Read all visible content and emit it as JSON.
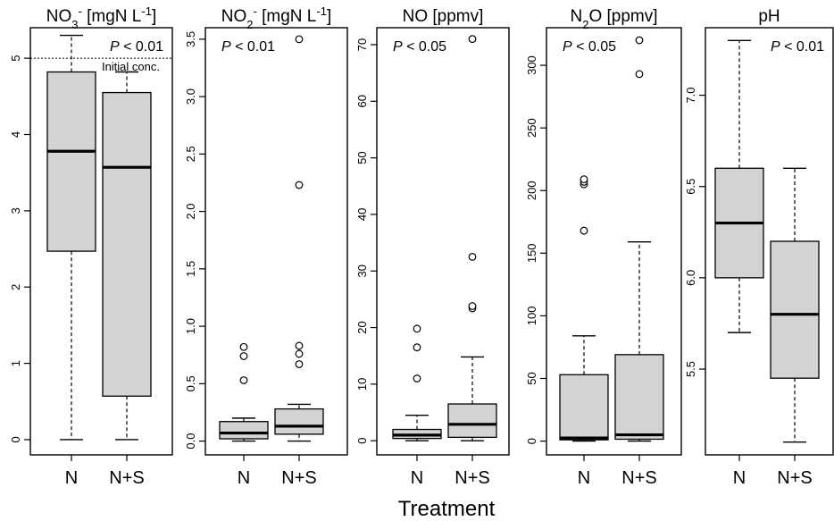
{
  "figure": {
    "xlabel": "Treatment"
  },
  "chart_data": [
    {
      "type": "boxplot",
      "title": "NO3- [mgN L-1]",
      "title_parts": {
        "species": "NO",
        "sub": "3",
        "sup": "-",
        "unit": " [mgN L",
        "unit_sup": "-1",
        "unit_end": "]"
      },
      "p_label": "P",
      "p_text": " < 0.01",
      "ylim": [
        -0.2,
        5.4
      ],
      "yticks": [
        0,
        1,
        2,
        3,
        4,
        5
      ],
      "categories": [
        "N",
        "N+S"
      ],
      "boxes": [
        {
          "name": "N",
          "whisker_low": 0.0,
          "q1": 2.47,
          "median": 3.78,
          "q3": 4.82,
          "whisker_high": 5.3,
          "outliers": []
        },
        {
          "name": "N+S",
          "whisker_low": 0.0,
          "q1": 0.57,
          "median": 3.57,
          "q3": 4.55,
          "whisker_high": 4.82,
          "outliers": []
        }
      ],
      "reference_line": {
        "value": 5.0,
        "label": "Initial conc."
      }
    },
    {
      "type": "boxplot",
      "title": "NO2- [mgN L-1]",
      "title_parts": {
        "species": "NO",
        "sub": "2",
        "sup": "-",
        "unit": " [mgN L",
        "unit_sup": "-1",
        "unit_end": "]"
      },
      "p_label": "P",
      "p_text": " < 0.01",
      "ylim": [
        -0.12,
        3.6
      ],
      "yticks": [
        "0.0",
        "0.5",
        "1.0",
        "1.5",
        "2.0",
        "2.5",
        "3.0",
        "3.5"
      ],
      "categories": [
        "N",
        "N+S"
      ],
      "boxes": [
        {
          "name": "N",
          "whisker_low": 0.0,
          "q1": 0.02,
          "median": 0.07,
          "q3": 0.17,
          "whisker_high": 0.2,
          "outliers": [
            0.53,
            0.74,
            0.82
          ]
        },
        {
          "name": "N+S",
          "whisker_low": 0.0,
          "q1": 0.06,
          "median": 0.13,
          "q3": 0.28,
          "whisker_high": 0.32,
          "outliers": [
            0.67,
            0.76,
            0.83,
            2.23,
            3.5
          ]
        }
      ]
    },
    {
      "type": "boxplot",
      "title": "NO [ppmv]",
      "title_parts": {
        "species": "NO",
        "sub": "",
        "sup": "",
        "unit": " [ppmv]",
        "unit_sup": "",
        "unit_end": ""
      },
      "p_label": "P",
      "p_text": " < 0.05",
      "ylim": [
        -2.5,
        73
      ],
      "yticks": [
        0,
        10,
        20,
        30,
        40,
        50,
        60,
        70
      ],
      "categories": [
        "N",
        "N+S"
      ],
      "boxes": [
        {
          "name": "N",
          "whisker_low": 0.0,
          "q1": 0.4,
          "median": 1.0,
          "q3": 2.0,
          "whisker_high": 4.5,
          "outliers": [
            11.0,
            16.5,
            19.8
          ]
        },
        {
          "name": "N+S",
          "whisker_low": 0.0,
          "q1": 0.6,
          "median": 2.9,
          "q3": 6.5,
          "whisker_high": 14.8,
          "outliers": [
            23.4,
            23.8,
            32.5,
            71.0
          ]
        }
      ]
    },
    {
      "type": "boxplot",
      "title": "N2O [ppmv]",
      "title_parts": {
        "species": "N",
        "sub": "2",
        "sup": "",
        "unit": "O [ppmv]",
        "unit_sup": "",
        "unit_end": ""
      },
      "p_label": "P",
      "p_text": " < 0.05",
      "ylim": [
        -11,
        330
      ],
      "yticks": [
        0,
        50,
        100,
        150,
        200,
        250,
        300
      ],
      "categories": [
        "N",
        "N+S"
      ],
      "boxes": [
        {
          "name": "N",
          "whisker_low": 0.0,
          "q1": 1.0,
          "median": 2.5,
          "q3": 53.0,
          "whisker_high": 84.0,
          "outliers": [
            168.0,
            205.0,
            207.0,
            209.0
          ]
        },
        {
          "name": "N+S",
          "whisker_low": 0.0,
          "q1": 1.5,
          "median": 5.0,
          "q3": 69.0,
          "whisker_high": 159.0,
          "outliers": [
            293.0,
            320.0
          ]
        }
      ]
    },
    {
      "type": "boxplot",
      "title": "pH",
      "title_parts": {
        "species": "pH",
        "sub": "",
        "sup": "",
        "unit": "",
        "unit_sup": "",
        "unit_end": ""
      },
      "p_label": "P",
      "p_text": " < 0.01",
      "ylim": [
        5.03,
        7.37
      ],
      "yticks": [
        "5.5",
        "6.0",
        "6.5",
        "7.0"
      ],
      "categories": [
        "N",
        "N+S"
      ],
      "boxes": [
        {
          "name": "N",
          "whisker_low": 5.7,
          "q1": 6.0,
          "median": 6.3,
          "q3": 6.6,
          "whisker_high": 7.3,
          "outliers": []
        },
        {
          "name": "N+S",
          "whisker_low": 5.1,
          "q1": 5.45,
          "median": 5.8,
          "q3": 6.2,
          "whisker_high": 6.6,
          "outliers": []
        }
      ]
    }
  ]
}
